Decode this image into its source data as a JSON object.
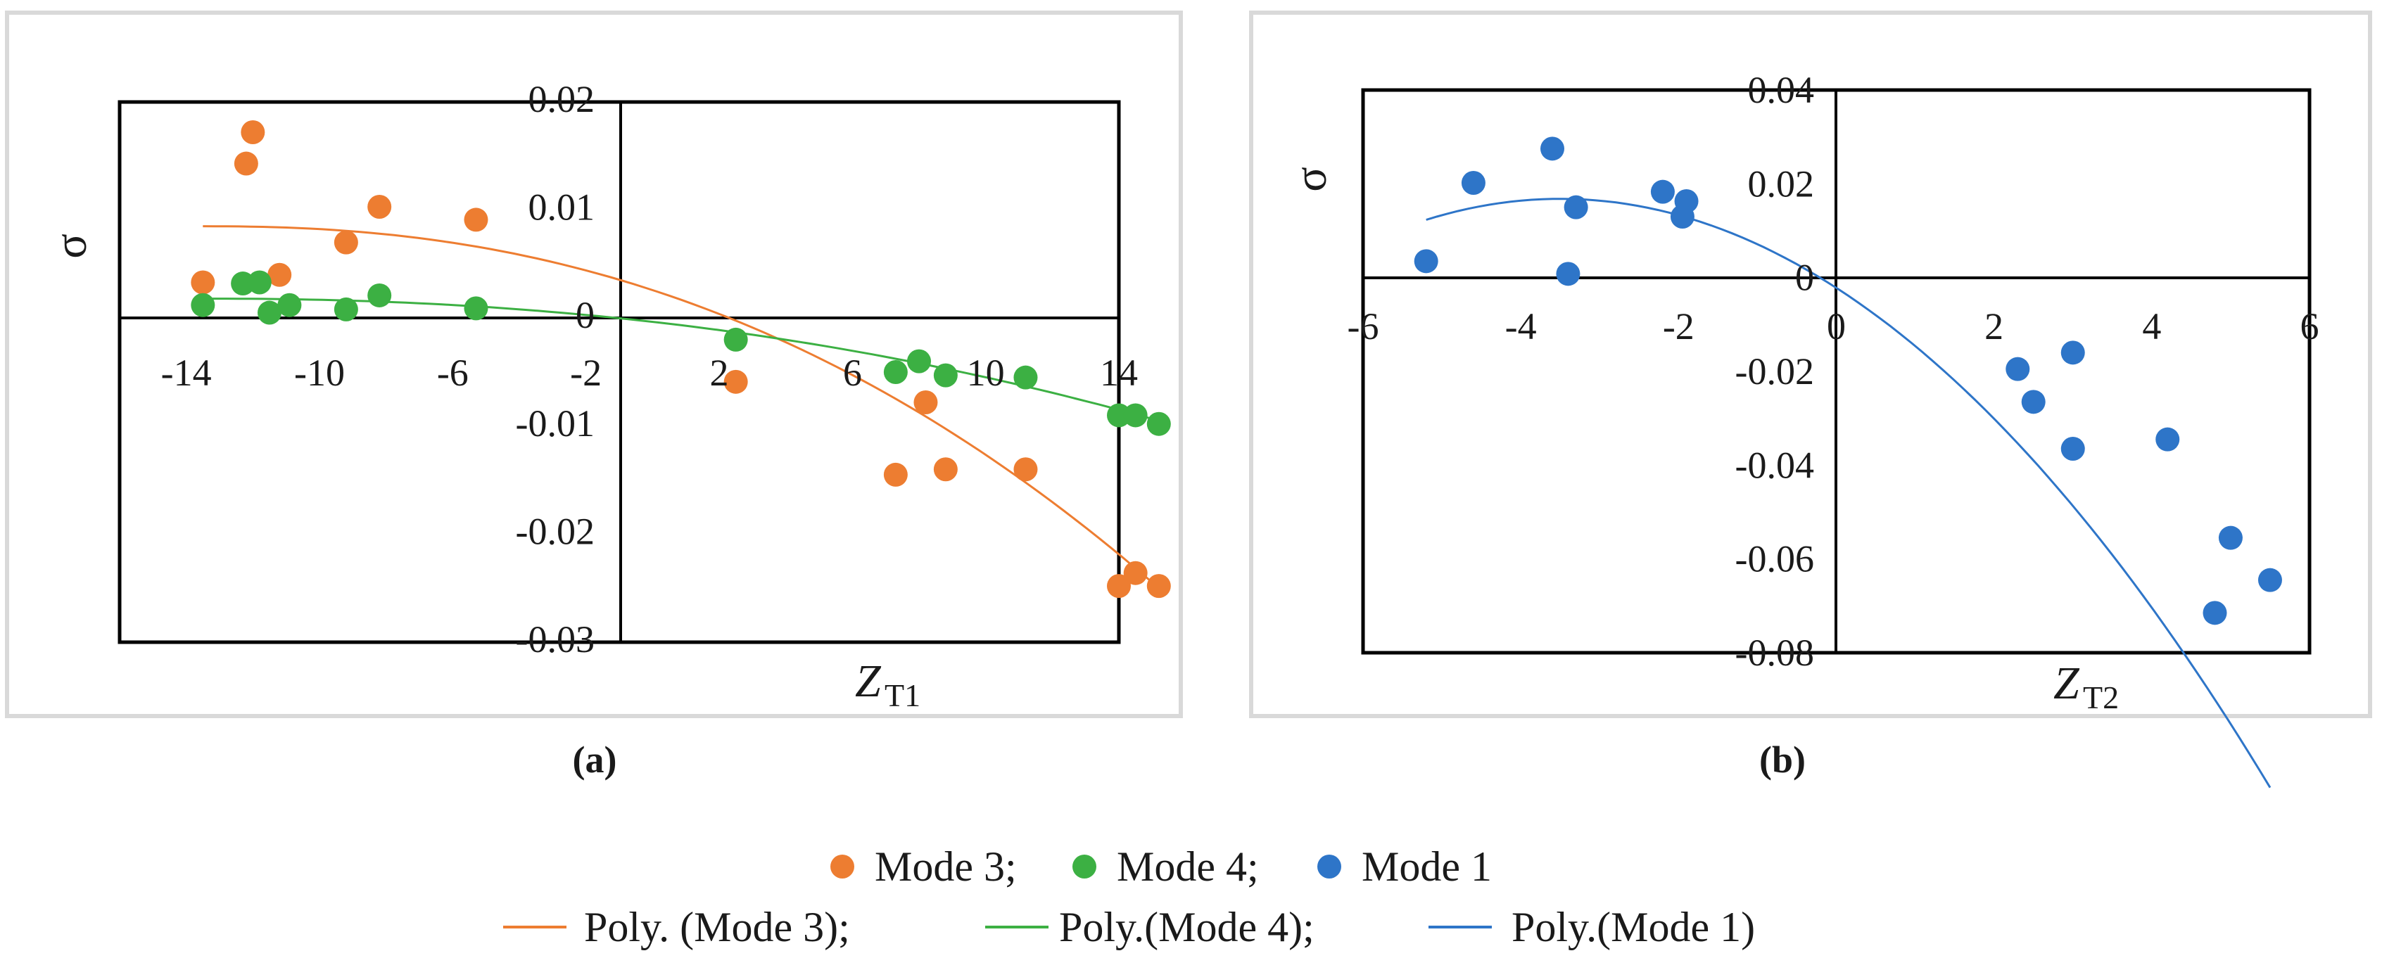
{
  "chart_data": [
    {
      "type": "scatter",
      "panel_label": "(a)",
      "xlabel": "Z",
      "xlabel_sub": "T1",
      "ylabel": "σ",
      "xlim": [
        -16,
        14
      ],
      "ylim": [
        -0.03,
        0.02
      ],
      "xticks": [
        -14,
        -10,
        -6,
        -2,
        2,
        6,
        10,
        14
      ],
      "yticks": [
        0.02,
        0.01,
        0,
        -0.01,
        -0.02,
        -0.03
      ],
      "xtick_labels": [
        "-14",
        "-10",
        "-6",
        "-2",
        "2",
        "6",
        "10",
        "14"
      ],
      "ytick_labels": [
        "0.02",
        "0.01",
        "0",
        "-0.01",
        "-0.02",
        "-0.03"
      ],
      "grid": false,
      "series": [
        {
          "name": "Mode 3",
          "color": "#ED7D31",
          "points": [
            [
              -13.5,
              0.0033
            ],
            [
              -12,
              0.0172
            ],
            [
              -12.2,
              0.0143
            ],
            [
              -11.2,
              0.004
            ],
            [
              -9.2,
              0.007
            ],
            [
              -8.2,
              0.0103
            ],
            [
              -5.3,
              0.0091
            ],
            [
              2.5,
              -0.0059
            ],
            [
              8.2,
              -0.0078
            ],
            [
              7.3,
              -0.0145
            ],
            [
              8.8,
              -0.014
            ],
            [
              11.2,
              -0.014
            ],
            [
              14.0,
              -0.0248
            ],
            [
              14.5,
              -0.0236
            ],
            [
              15.2,
              -0.0248
            ]
          ],
          "fit": {
            "name": "Poly. (Mode 3)",
            "x_range": [
              -13.5,
              15.2
            ],
            "coeffs": [
              0.0012,
              -0.0012,
              -8.4e-05,
              0
            ]
          }
        },
        {
          "name": "Mode 4",
          "color": "#3CB043",
          "points": [
            [
              -13.5,
              0.0012
            ],
            [
              -12.3,
              0.0032
            ],
            [
              -11.8,
              0.0033
            ],
            [
              -11.5,
              0.0005
            ],
            [
              -10.9,
              0.0012
            ],
            [
              -9.2,
              0.0008
            ],
            [
              -8.2,
              0.0021
            ],
            [
              -5.3,
              0.0009
            ],
            [
              2.5,
              -0.002
            ],
            [
              7.3,
              -0.005
            ],
            [
              8.0,
              -0.004
            ],
            [
              8.8,
              -0.0053
            ],
            [
              11.2,
              -0.0055
            ],
            [
              14.0,
              -0.009
            ],
            [
              14.5,
              -0.009
            ],
            [
              15.2,
              -0.0098
            ]
          ],
          "fit": {
            "name": "Poly.(Mode 4)",
            "x_range": [
              -13.5,
              15.2
            ],
            "coeffs": [
              0.0005,
              -0.0005,
              -2e-05,
              0
            ]
          }
        }
      ]
    },
    {
      "type": "scatter",
      "panel_label": "(b)",
      "xlabel": "Z",
      "xlabel_sub": "T2",
      "ylabel": "σ",
      "xlim": [
        -6,
        6
      ],
      "ylim": [
        -0.08,
        0.04
      ],
      "xticks": [
        -6,
        -4,
        -2,
        0,
        2,
        4,
        6
      ],
      "yticks": [
        0.04,
        0.02,
        0,
        -0.02,
        -0.04,
        -0.06,
        -0.08
      ],
      "xtick_labels": [
        "-6",
        "-4",
        "-2",
        "0",
        "2",
        "4",
        "6"
      ],
      "ytick_labels": [
        "0.04",
        "0.02",
        "0",
        "-0.02",
        "-0.04",
        "-0.06",
        "-0.08"
      ],
      "grid": false,
      "series": [
        {
          "name": "Mode 1",
          "color": "#2E75C8",
          "points": [
            [
              -5.2,
              0.0035
            ],
            [
              -4.6,
              0.0202
            ],
            [
              -3.6,
              0.0275
            ],
            [
              -3.3,
              0.015
            ],
            [
              -3.4,
              0.0008
            ],
            [
              -2.2,
              0.0183
            ],
            [
              -1.9,
              0.0163
            ],
            [
              -1.95,
              0.013
            ],
            [
              2.3,
              -0.0195
            ],
            [
              2.5,
              -0.0265
            ],
            [
              3.0,
              -0.016
            ],
            [
              3.0,
              -0.0365
            ],
            [
              4.2,
              -0.0345
            ],
            [
              5.0,
              -0.0555
            ],
            [
              4.8,
              -0.0715
            ],
            [
              5.5,
              -0.0645
            ]
          ],
          "fit": {
            "name": "Poly.(Mode 1)",
            "x_range": [
              -5.2,
              5.5
            ],
            "coeffs": [
              0.0025,
              -0.0055,
              -0.0012,
              0
            ]
          }
        }
      ]
    }
  ],
  "legend": {
    "markers": [
      {
        "label": "Mode 3;",
        "color": "#ED7D31"
      },
      {
        "label": "Mode 4;",
        "color": "#3CB043"
      },
      {
        "label": "Mode 1",
        "color": "#2E75C8"
      }
    ],
    "lines": [
      {
        "label": "Poly. (Mode 3);",
        "color": "#ED7D31"
      },
      {
        "label": "Poly.(Mode 4);",
        "color": "#3CB043"
      },
      {
        "label": "Poly.(Mode 1)",
        "color": "#2E75C8"
      }
    ]
  }
}
